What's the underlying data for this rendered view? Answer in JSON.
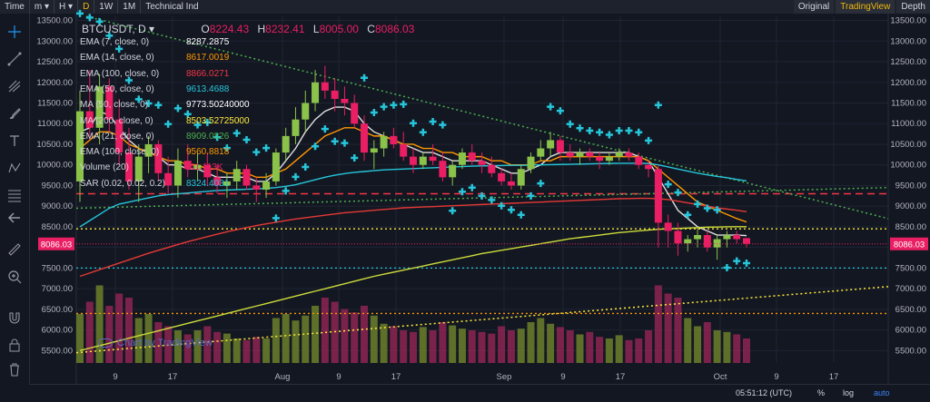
{
  "toolbar": {
    "items": [
      "Time",
      "m",
      "H",
      "D",
      "1W",
      "1M",
      "Technical Ind"
    ],
    "selected": "D",
    "dropdown_glyph": "▾",
    "right": [
      "Original",
      "TradingView",
      "Depth"
    ],
    "right_selected": "TradingView"
  },
  "chart_header": {
    "symbol": "BTCUSDT, D",
    "open_label": "O",
    "open": "8224.43",
    "high_label": "H",
    "high": "8232.41",
    "low_label": "L",
    "low": "8005.00",
    "close_label": "C",
    "close": "8086.03"
  },
  "indicators": [
    {
      "label": "EMA (7, close, 0)",
      "value": "8287.2875",
      "color": "#ffffff"
    },
    {
      "label": "EMA (14, close, 0)",
      "value": "8617.0019",
      "color": "#ff9800"
    },
    {
      "label": "EMA (100, close, 0)",
      "value": "8866.0271",
      "color": "#f23645"
    },
    {
      "label": "EMA (50, close, 0)",
      "value": "9613.4688",
      "color": "#26c6da"
    },
    {
      "label": "MA (50, close, 0)",
      "value": "9773.50240000",
      "color": "#ffffff"
    },
    {
      "label": "MA (200, close, 0)",
      "value": "8503.52725000",
      "color": "#ffeb3b"
    },
    {
      "label": "EMA (21, close, 0)",
      "value": "8909.0826",
      "color": "#4caf50"
    },
    {
      "label": "EMA (100, close, 0)",
      "value": "9560.8818",
      "color": "#ff9800"
    },
    {
      "label": "Volume (20)",
      "value": "111.113K",
      "color": "#e91e63"
    },
    {
      "label": "SAR (0.02, 0.02, 0.2)",
      "value": "8324.4031",
      "color": "#26c6da"
    }
  ],
  "price_axis": {
    "ticks": [
      "13500.00",
      "13000.00",
      "12500.00",
      "12000.00",
      "11500.00",
      "11000.00",
      "10500.00",
      "10000.00",
      "9500.00",
      "9000.00",
      "8500.00",
      "8000.00",
      "7500.00",
      "7000.00",
      "6500.00",
      "6000.00",
      "5500.00"
    ],
    "current_price": "8086.03"
  },
  "time_axis": {
    "labels": [
      "9",
      "17",
      "Aug",
      "9",
      "17",
      "Sep",
      "9",
      "17",
      "Oct",
      "9",
      "17"
    ]
  },
  "watermark": "Chart by TradingView",
  "status": {
    "time": "05:51:12 (UTC)",
    "percent": "%",
    "log": "log",
    "auto": "auto"
  },
  "colors": {
    "up": "#8bc34a",
    "down": "#e91e63",
    "sar": "#26c6da",
    "accent": "#f0b90b",
    "price_tag": "#e91e63"
  },
  "chart_data": {
    "type": "candlestick",
    "symbol": "BTCUSDT",
    "interval": "D",
    "ylim": [
      5200,
      13600
    ],
    "candles": [
      {
        "o": 9600,
        "h": 11800,
        "l": 9100,
        "c": 11300
      },
      {
        "o": 11300,
        "h": 12300,
        "l": 10600,
        "c": 10900
      },
      {
        "o": 10900,
        "h": 12200,
        "l": 10500,
        "c": 11900
      },
      {
        "o": 11900,
        "h": 12100,
        "l": 10800,
        "c": 11100
      },
      {
        "o": 11100,
        "h": 11600,
        "l": 10000,
        "c": 10300
      },
      {
        "o": 10300,
        "h": 10900,
        "l": 9400,
        "c": 9600
      },
      {
        "o": 9600,
        "h": 10500,
        "l": 9100,
        "c": 10200
      },
      {
        "o": 10200,
        "h": 10700,
        "l": 9800,
        "c": 10500
      },
      {
        "o": 10500,
        "h": 10600,
        "l": 9600,
        "c": 9800
      },
      {
        "o": 9800,
        "h": 10200,
        "l": 9300,
        "c": 9500
      },
      {
        "o": 9500,
        "h": 10400,
        "l": 9200,
        "c": 10100
      },
      {
        "o": 10100,
        "h": 10500,
        "l": 9700,
        "c": 9900
      },
      {
        "o": 9900,
        "h": 10300,
        "l": 9600,
        "c": 10000
      },
      {
        "o": 10000,
        "h": 10300,
        "l": 9500,
        "c": 9700
      },
      {
        "o": 9700,
        "h": 10000,
        "l": 9300,
        "c": 9500
      },
      {
        "o": 9500,
        "h": 9800,
        "l": 9200,
        "c": 9600
      },
      {
        "o": 9600,
        "h": 10100,
        "l": 9400,
        "c": 9900
      },
      {
        "o": 9900,
        "h": 10000,
        "l": 9400,
        "c": 9500
      },
      {
        "o": 9500,
        "h": 9700,
        "l": 9100,
        "c": 9400
      },
      {
        "o": 9400,
        "h": 9800,
        "l": 9200,
        "c": 9600
      },
      {
        "o": 9600,
        "h": 10400,
        "l": 9500,
        "c": 10300
      },
      {
        "o": 10300,
        "h": 10900,
        "l": 10100,
        "c": 10700
      },
      {
        "o": 10700,
        "h": 11400,
        "l": 10500,
        "c": 11100
      },
      {
        "o": 11100,
        "h": 11800,
        "l": 10800,
        "c": 11500
      },
      {
        "o": 11500,
        "h": 12300,
        "l": 11300,
        "c": 12000
      },
      {
        "o": 12000,
        "h": 12400,
        "l": 11600,
        "c": 11800
      },
      {
        "o": 11800,
        "h": 12100,
        "l": 11300,
        "c": 11600
      },
      {
        "o": 11600,
        "h": 11900,
        "l": 11200,
        "c": 11500
      },
      {
        "o": 11500,
        "h": 11700,
        "l": 10900,
        "c": 11000
      },
      {
        "o": 11000,
        "h": 11200,
        "l": 10100,
        "c": 10300
      },
      {
        "o": 10300,
        "h": 10600,
        "l": 9900,
        "c": 10400
      },
      {
        "o": 10400,
        "h": 10800,
        "l": 10200,
        "c": 10700
      },
      {
        "o": 10700,
        "h": 10900,
        "l": 10400,
        "c": 10500
      },
      {
        "o": 10500,
        "h": 10800,
        "l": 10100,
        "c": 10200
      },
      {
        "o": 10200,
        "h": 10400,
        "l": 9800,
        "c": 10000
      },
      {
        "o": 10000,
        "h": 10300,
        "l": 9900,
        "c": 10200
      },
      {
        "o": 10200,
        "h": 10500,
        "l": 10000,
        "c": 10100
      },
      {
        "o": 10100,
        "h": 10300,
        "l": 9600,
        "c": 9700
      },
      {
        "o": 9700,
        "h": 10100,
        "l": 9500,
        "c": 10000
      },
      {
        "o": 10000,
        "h": 10400,
        "l": 9900,
        "c": 10300
      },
      {
        "o": 10300,
        "h": 10500,
        "l": 10000,
        "c": 10100
      },
      {
        "o": 10100,
        "h": 10300,
        "l": 9800,
        "c": 10000
      },
      {
        "o": 10000,
        "h": 10200,
        "l": 9700,
        "c": 9800
      },
      {
        "o": 9800,
        "h": 9900,
        "l": 9500,
        "c": 9600
      },
      {
        "o": 9600,
        "h": 9800,
        "l": 9400,
        "c": 9500
      },
      {
        "o": 9500,
        "h": 10000,
        "l": 9400,
        "c": 9900
      },
      {
        "o": 9900,
        "h": 10300,
        "l": 9800,
        "c": 10200
      },
      {
        "o": 10200,
        "h": 10600,
        "l": 10100,
        "c": 10400
      },
      {
        "o": 10400,
        "h": 10800,
        "l": 10200,
        "c": 10600
      },
      {
        "o": 10600,
        "h": 10700,
        "l": 10100,
        "c": 10300
      },
      {
        "o": 10300,
        "h": 10500,
        "l": 10100,
        "c": 10200
      },
      {
        "o": 10200,
        "h": 10400,
        "l": 10000,
        "c": 10300
      },
      {
        "o": 10300,
        "h": 10400,
        "l": 10100,
        "c": 10200
      },
      {
        "o": 10200,
        "h": 10300,
        "l": 9900,
        "c": 10100
      },
      {
        "o": 10100,
        "h": 10300,
        "l": 10000,
        "c": 10200
      },
      {
        "o": 10200,
        "h": 10400,
        "l": 10100,
        "c": 10300
      },
      {
        "o": 10300,
        "h": 10400,
        "l": 10100,
        "c": 10200
      },
      {
        "o": 10200,
        "h": 10300,
        "l": 9900,
        "c": 10000
      },
      {
        "o": 10000,
        "h": 10100,
        "l": 9700,
        "c": 9900
      },
      {
        "o": 9900,
        "h": 10000,
        "l": 8000,
        "c": 8600
      },
      {
        "o": 8600,
        "h": 8800,
        "l": 8000,
        "c": 8400
      },
      {
        "o": 8400,
        "h": 8600,
        "l": 7800,
        "c": 8100
      },
      {
        "o": 8100,
        "h": 8300,
        "l": 7900,
        "c": 8200
      },
      {
        "o": 8200,
        "h": 8500,
        "l": 8000,
        "c": 8300
      },
      {
        "o": 8300,
        "h": 8400,
        "l": 7900,
        "c": 8000
      },
      {
        "o": 8000,
        "h": 8300,
        "l": 7700,
        "c": 8200
      },
      {
        "o": 8200,
        "h": 8400,
        "l": 8000,
        "c": 8300
      },
      {
        "o": 8300,
        "h": 8400,
        "l": 8100,
        "c": 8200
      },
      {
        "o": 8224.43,
        "h": 8232.41,
        "l": 8005,
        "c": 8086.03
      }
    ],
    "volume": [
      60,
      75,
      95,
      70,
      85,
      80,
      55,
      60,
      50,
      45,
      40,
      35,
      40,
      45,
      38,
      36,
      30,
      28,
      32,
      30,
      55,
      60,
      52,
      58,
      70,
      80,
      75,
      66,
      62,
      70,
      58,
      48,
      45,
      40,
      38,
      44,
      40,
      50,
      46,
      42,
      40,
      38,
      36,
      45,
      40,
      42,
      50,
      55,
      48,
      44,
      40,
      35,
      38,
      32,
      30,
      34,
      28,
      30,
      40,
      95,
      85,
      80,
      55,
      45,
      50,
      40,
      38,
      35,
      30
    ],
    "overlays": {
      "ema7_white": [
        10800,
        10900,
        11300,
        11200,
        10900,
        10600,
        10400,
        10300,
        10200,
        10000,
        10000,
        9900,
        9900,
        9800,
        9700,
        9700,
        9700,
        9700,
        9600,
        9600,
        9800,
        10100,
        10400,
        10800,
        11100,
        11300,
        11400,
        11400,
        11300,
        11000,
        10800,
        10700,
        10600,
        10500,
        10400,
        10300,
        10300,
        10200,
        10100,
        10100,
        10100,
        10100,
        10000,
        9900,
        9800,
        9800,
        9900,
        10000,
        10200,
        10300,
        10300,
        10300,
        10300,
        10300,
        10300,
        10300,
        10300,
        10200,
        10100,
        9700,
        9300,
        8900,
        8700,
        8500,
        8400,
        8300,
        8300,
        8300,
        8287
      ],
      "ema14_orange": [
        10400,
        10600,
        10800,
        10800,
        10700,
        10500,
        10400,
        10300,
        10200,
        10100,
        10100,
        10000,
        10000,
        9900,
        9900,
        9800,
        9800,
        9800,
        9700,
        9700,
        9800,
        9900,
        10100,
        10300,
        10500,
        10700,
        10800,
        10900,
        10900,
        10800,
        10700,
        10700,
        10600,
        10500,
        10500,
        10400,
        10400,
        10300,
        10300,
        10200,
        10200,
        10200,
        10100,
        10100,
        10000,
        10000,
        10000,
        10100,
        10100,
        10200,
        10200,
        10200,
        10200,
        10200,
        10200,
        10200,
        10200,
        10200,
        10100,
        9900,
        9700,
        9500,
        9300,
        9100,
        9000,
        8900,
        8800,
        8700,
        8617
      ],
      "ema50_cyan": [
        8500,
        8650,
        8800,
        8950,
        9050,
        9100,
        9150,
        9200,
        9250,
        9280,
        9300,
        9320,
        9340,
        9360,
        9380,
        9390,
        9400,
        9410,
        9420,
        9430,
        9450,
        9480,
        9520,
        9580,
        9640,
        9700,
        9750,
        9790,
        9820,
        9840,
        9860,
        9880,
        9890,
        9900,
        9910,
        9920,
        9930,
        9940,
        9950,
        9960,
        9970,
        9975,
        9980,
        9985,
        9990,
        9990,
        9995,
        10000,
        10005,
        10010,
        10015,
        10020,
        10025,
        10030,
        10035,
        10040,
        10040,
        10040,
        10035,
        10000,
        9950,
        9900,
        9850,
        9800,
        9760,
        9720,
        9690,
        9650,
        9613
      ],
      "ma100_red": [
        7300,
        7380,
        7460,
        7540,
        7620,
        7700,
        7780,
        7860,
        7930,
        8000,
        8070,
        8140,
        8200,
        8260,
        8320,
        8380,
        8430,
        8480,
        8530,
        8570,
        8610,
        8650,
        8690,
        8720,
        8750,
        8780,
        8810,
        8840,
        8860,
        8880,
        8900,
        8920,
        8940,
        8960,
        8970,
        8980,
        8990,
        9000,
        9010,
        9020,
        9030,
        9040,
        9050,
        9060,
        9070,
        9080,
        9090,
        9100,
        9110,
        9120,
        9130,
        9140,
        9150,
        9160,
        9170,
        9180,
        9185,
        9190,
        9190,
        9180,
        9160,
        9120,
        9080,
        9040,
        9000,
        8960,
        8930,
        8900,
        8866
      ],
      "ma200_yellow": [
        5500,
        5560,
        5620,
        5680,
        5740,
        5800,
        5860,
        5920,
        5980,
        6040,
        6100,
        6160,
        6220,
        6280,
        6340,
        6400,
        6460,
        6520,
        6580,
        6640,
        6700,
        6760,
        6820,
        6880,
        6940,
        7000,
        7060,
        7120,
        7180,
        7240,
        7300,
        7350,
        7400,
        7450,
        7500,
        7550,
        7600,
        7650,
        7700,
        7750,
        7800,
        7850,
        7890,
        7930,
        7970,
        8010,
        8050,
        8090,
        8130,
        8170,
        8210,
        8240,
        8270,
        8300,
        8330,
        8360,
        8380,
        8400,
        8420,
        8440,
        8450,
        8460,
        8470,
        8480,
        8490,
        8495,
        8500,
        8502,
        8503
      ]
    },
    "horizontal_levels": [
      {
        "price": 9300,
        "color": "#f23645",
        "style": "dashed"
      },
      {
        "price": 8450,
        "color": "#ffeb3b",
        "style": "dotted"
      },
      {
        "price": 7500,
        "color": "#26c6da",
        "style": "dotted"
      },
      {
        "price": 6400,
        "color": "#ff9800",
        "style": "dotted"
      }
    ]
  }
}
